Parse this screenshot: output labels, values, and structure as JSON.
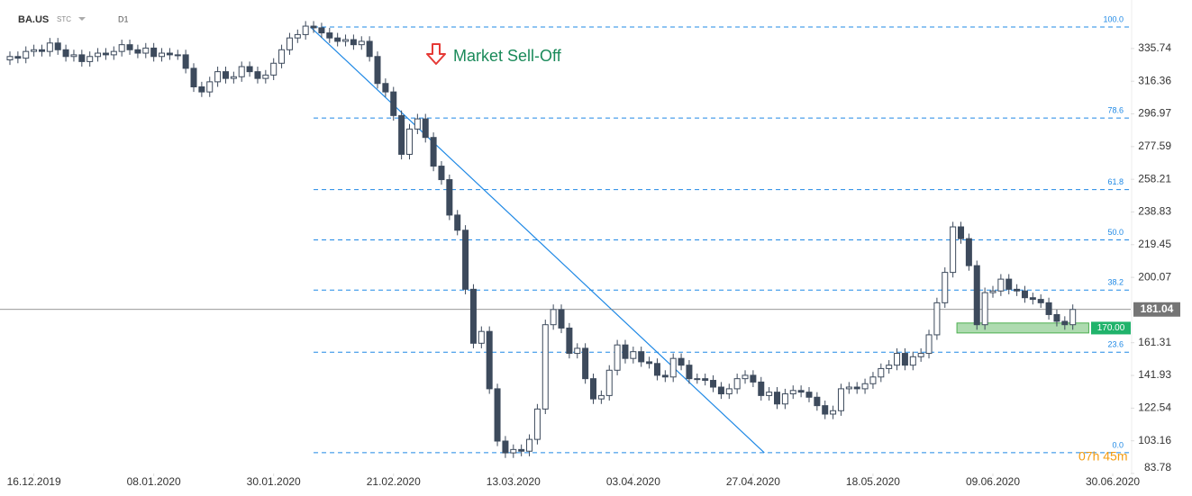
{
  "chart_data": {
    "type": "candlestick",
    "symbol": "BA.US",
    "source": "STC",
    "timeframe": "D1",
    "x": [
      0,
      1,
      2,
      3,
      4,
      5,
      6,
      7,
      8,
      9,
      10,
      11,
      12,
      13,
      14,
      15,
      16,
      17,
      18,
      19,
      20,
      21,
      22,
      23,
      24,
      25,
      26,
      27,
      28,
      29,
      30,
      31,
      32,
      33,
      34,
      35,
      36,
      37,
      38,
      39,
      40,
      41,
      42,
      43,
      44,
      45,
      46,
      47,
      48,
      49,
      50,
      51,
      52,
      53,
      54,
      55,
      56,
      57,
      58,
      59,
      60,
      61,
      62,
      63,
      64,
      65,
      66,
      67,
      68,
      69,
      70,
      71,
      72,
      73,
      74,
      75,
      76,
      77,
      78,
      79,
      80,
      81,
      82,
      83,
      84,
      85,
      86,
      87,
      88,
      89,
      90,
      91,
      92,
      93,
      94,
      95,
      96,
      97,
      98,
      99,
      100,
      101,
      102,
      103,
      104,
      105,
      106,
      107,
      108,
      109,
      110,
      111,
      112,
      113,
      114,
      115,
      116,
      117,
      118,
      119,
      120,
      121,
      122,
      123,
      124,
      125,
      126,
      127,
      128,
      129,
      130,
      131,
      132,
      133
    ],
    "open": [
      329,
      331,
      330,
      334,
      335,
      334,
      339,
      335,
      331,
      332,
      328,
      331,
      333,
      332,
      334,
      338,
      335,
      333,
      336,
      331,
      333,
      332,
      332,
      324,
      313,
      310,
      316,
      322,
      318,
      319,
      325,
      322,
      318,
      320,
      327,
      335,
      342,
      344,
      349,
      348,
      345,
      342,
      340,
      341,
      338,
      340,
      331,
      315,
      310,
      296,
      273,
      288,
      294,
      283,
      266,
      258,
      237,
      228,
      193,
      161,
      168,
      134,
      103,
      96,
      98,
      97,
      104,
      122,
      172,
      181,
      170,
      155,
      158,
      140,
      128,
      130,
      145,
      160,
      152,
      156,
      150,
      149,
      142,
      141,
      152,
      148,
      140,
      140,
      139,
      135,
      131,
      134,
      140,
      142,
      138,
      130,
      132,
      125,
      131,
      133,
      132,
      129,
      124,
      119,
      121,
      134,
      135,
      134,
      137,
      141,
      146,
      148,
      155,
      148,
      153,
      155,
      166,
      185,
      203,
      230,
      223,
      207,
      172,
      191,
      192,
      199,
      193,
      192,
      188,
      187,
      185,
      178,
      174,
      172
    ],
    "high": [
      334,
      334,
      337,
      338,
      338,
      342,
      342,
      338,
      335,
      335,
      334,
      336,
      336,
      337,
      341,
      341,
      338,
      339,
      339,
      336,
      336,
      335,
      335,
      327,
      316,
      319,
      325,
      325,
      322,
      328,
      328,
      325,
      323,
      330,
      338,
      345,
      347,
      352,
      352,
      351,
      348,
      345,
      344,
      344,
      343,
      343,
      334,
      318,
      313,
      299,
      291,
      297,
      297,
      286,
      269,
      261,
      240,
      231,
      196,
      171,
      171,
      137,
      106,
      101,
      101,
      107,
      125,
      175,
      184,
      184,
      173,
      161,
      161,
      143,
      133,
      148,
      163,
      163,
      159,
      159,
      153,
      152,
      145,
      155,
      155,
      151,
      143,
      143,
      142,
      138,
      137,
      143,
      145,
      145,
      141,
      135,
      135,
      134,
      136,
      136,
      135,
      132,
      127,
      124,
      137,
      138,
      138,
      140,
      144,
      149,
      151,
      158,
      158,
      156,
      158,
      169,
      188,
      206,
      233,
      233,
      226,
      210,
      194,
      195,
      202,
      202,
      196,
      195,
      191,
      190,
      188,
      181,
      177,
      184
    ],
    "low": [
      326,
      327,
      327,
      331,
      331,
      331,
      332,
      328,
      328,
      325,
      325,
      328,
      329,
      329,
      331,
      332,
      330,
      330,
      328,
      328,
      329,
      329,
      321,
      310,
      307,
      307,
      313,
      315,
      315,
      316,
      319,
      315,
      315,
      317,
      324,
      332,
      339,
      341,
      345,
      342,
      339,
      337,
      337,
      335,
      335,
      328,
      312,
      307,
      293,
      270,
      270,
      285,
      280,
      263,
      255,
      234,
      225,
      190,
      158,
      158,
      131,
      100,
      93,
      93,
      94,
      94,
      101,
      119,
      169,
      167,
      152,
      152,
      137,
      125,
      125,
      127,
      142,
      149,
      149,
      147,
      146,
      139,
      138,
      138,
      145,
      137,
      137,
      136,
      132,
      128,
      128,
      131,
      137,
      135,
      127,
      127,
      122,
      122,
      128,
      129,
      126,
      121,
      116,
      116,
      118,
      131,
      131,
      131,
      134,
      138,
      143,
      145,
      145,
      145,
      150,
      152,
      163,
      182,
      200,
      220,
      204,
      169,
      169,
      188,
      189,
      190,
      189,
      185,
      184,
      182,
      175,
      171,
      169,
      169
    ],
    "close": [
      331,
      330,
      334,
      335,
      334,
      339,
      335,
      331,
      332,
      328,
      331,
      333,
      332,
      334,
      338,
      335,
      333,
      336,
      331,
      333,
      332,
      332,
      324,
      313,
      310,
      316,
      322,
      318,
      319,
      325,
      322,
      318,
      320,
      327,
      335,
      342,
      344,
      349,
      348,
      345,
      342,
      340,
      341,
      338,
      340,
      331,
      315,
      310,
      296,
      273,
      288,
      294,
      283,
      266,
      258,
      237,
      228,
      193,
      161,
      168,
      134,
      103,
      96,
      98,
      97,
      104,
      122,
      172,
      181,
      170,
      155,
      158,
      140,
      128,
      130,
      145,
      160,
      152,
      156,
      150,
      149,
      142,
      141,
      152,
      148,
      140,
      140,
      139,
      135,
      131,
      134,
      140,
      142,
      138,
      130,
      132,
      125,
      131,
      133,
      132,
      129,
      124,
      119,
      121,
      134,
      135,
      134,
      137,
      141,
      146,
      148,
      155,
      148,
      153,
      155,
      166,
      185,
      203,
      230,
      223,
      207,
      172,
      191,
      192,
      199,
      193,
      192,
      188,
      187,
      185,
      178,
      174,
      172,
      181.04
    ],
    "up_color": "#ffffff",
    "down_color": "#3d4a5c",
    "xlim": [
      -1.24,
      140.25
    ],
    "xticks": [
      {
        "value": 3,
        "label": "16.12.2019"
      },
      {
        "value": 18,
        "label": "08.01.2020"
      },
      {
        "value": 33,
        "label": "30.01.2020"
      },
      {
        "value": 48,
        "label": "21.02.2020"
      },
      {
        "value": 63,
        "label": "13.03.2020"
      },
      {
        "value": 78,
        "label": "03.04.2020"
      },
      {
        "value": 93,
        "label": "27.04.2020"
      },
      {
        "value": 108,
        "label": "18.05.2020"
      },
      {
        "value": 123,
        "label": "09.06.2020"
      },
      {
        "value": 138,
        "label": "30.06.2020"
      }
    ],
    "ylim": [
      83.78,
      364.5
    ],
    "yticks": [
      335.74,
      316.36,
      296.97,
      277.59,
      258.21,
      238.83,
      219.45,
      200.07,
      161.31,
      141.93,
      122.54,
      103.16,
      83.78
    ],
    "grid": false,
    "last_price": {
      "value": 181.04,
      "color": "#757575"
    },
    "fibonacci": {
      "start": 38,
      "color": "#1e88e5",
      "levels": [
        {
          "ratio": {
            "value": 100,
            "label": "100.0"
          },
          "price": 348.5
        },
        {
          "ratio": 78.6,
          "price": 294.5
        },
        {
          "ratio": 61.8,
          "price": 252.1
        },
        {
          "ratio": {
            "value": 50,
            "label": "50.0"
          },
          "price": 222.3
        },
        {
          "ratio": 38.2,
          "price": 192.5
        },
        {
          "ratio": 23.6,
          "price": 155.7
        },
        {
          "ratio": {
            "value": 0,
            "label": "0.0"
          },
          "price": 96.1
        }
      ]
    },
    "trendline": {
      "x": [
        37.6,
        94.4
      ],
      "y": [
        348.5,
        96.1
      ],
      "color": "#1e88e5"
    },
    "zone": {
      "start": 118.5,
      "end": 135,
      "low": 167.1,
      "high": 173,
      "color": "#4caf50",
      "price": {
        "value": 170,
        "label": "170.00"
      }
    },
    "annotation": {
      "text": "Market Sell-Off",
      "color": "#1a8a5a"
    },
    "countdown": "07h 45m"
  }
}
